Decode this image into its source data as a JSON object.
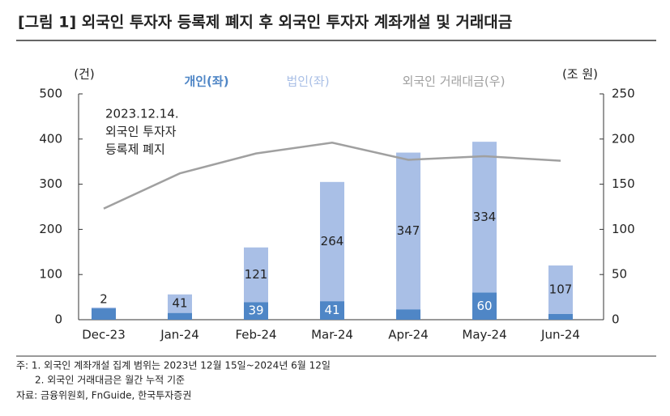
{
  "chart_data": {
    "type": "bar",
    "title": "[그림 1] 외국인 투자자 등록제 폐지 후 외국인 투자자 계좌개설 및 거래대금",
    "y_unit": "(건)",
    "y2_unit": "(조 원)",
    "annotation": [
      "2023.12.14.",
      "외국인 투자자",
      "등록제 폐지"
    ],
    "categories": [
      "Dec-23",
      "Jan-24",
      "Feb-24",
      "Mar-24",
      "Apr-24",
      "May-24",
      "Jun-24"
    ],
    "stacked": true,
    "series": [
      {
        "name": "개인(좌)",
        "color": "#4f86c6",
        "values": [
          25,
          15,
          39,
          41,
          23,
          60,
          13
        ]
      },
      {
        "name": "법인(좌)",
        "color": "#a9bfe6",
        "values": [
          2,
          41,
          121,
          264,
          347,
          334,
          107
        ]
      },
      {
        "name": "외국인 거래대금(우)",
        "color": "#a0a0a0",
        "type": "line",
        "axis": "y2",
        "values": [
          123,
          162,
          184,
          196,
          177,
          181,
          176
        ]
      }
    ],
    "ylim": [
      0,
      500
    ],
    "yticks": [
      0,
      100,
      200,
      300,
      400,
      500
    ],
    "y2lim": [
      0,
      250
    ],
    "y2ticks": [
      0,
      50,
      100,
      150,
      200,
      250
    ],
    "notes": [
      "주: 1. 외국인 계좌개설 집계 범위는 2023년 12월 15일~2024년 6월 12일",
      "2. 외국인 거래대금은 월간 누적 기준",
      "자료: 금융위원회, FnGuide, 한국투자증권"
    ]
  }
}
